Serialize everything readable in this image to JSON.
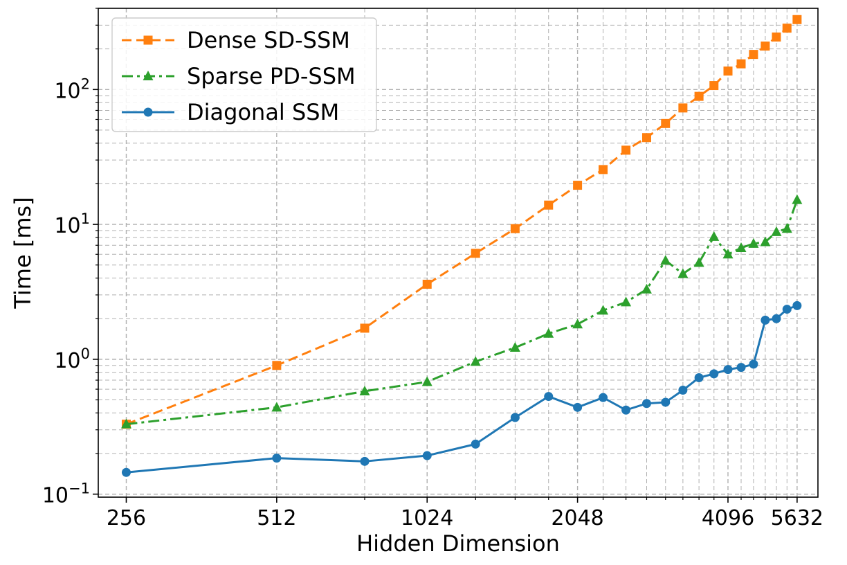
{
  "chart_data": {
    "type": "line",
    "xlabel": "Hidden Dimension",
    "ylabel": "Time [ms]",
    "x_scale": "log2",
    "y_scale": "log10",
    "xlim": [
      225,
      6200
    ],
    "ylim": [
      0.095,
      400
    ],
    "grid": true,
    "legend_position": "top-left",
    "x_ticks": [
      256,
      512,
      1024,
      2048,
      4096,
      5632
    ],
    "x_tick_labels": [
      "256",
      "512",
      "1024",
      "2048",
      "4096",
      "5632"
    ],
    "y_ticks": [
      {
        "value": 0.1,
        "base": "10",
        "exp": "−1"
      },
      {
        "value": 1,
        "base": "10",
        "exp": "0"
      },
      {
        "value": 10,
        "base": "10",
        "exp": "1"
      },
      {
        "value": 100,
        "base": "10",
        "exp": "2"
      }
    ],
    "series": [
      {
        "name": "Dense SD-SSM",
        "color": "#ff7f0e",
        "marker": "square",
        "linestyle": "dashed",
        "x": [
          256,
          512,
          768,
          1024,
          1280,
          1536,
          1792,
          2048,
          2304,
          2560,
          2816,
          3072,
          3328,
          3584,
          3840,
          4096,
          4352,
          4608,
          4864,
          5120,
          5376,
          5632
        ],
        "y": [
          0.33,
          0.9,
          1.7,
          3.6,
          6.1,
          9.3,
          13.9,
          19.5,
          25.5,
          35.5,
          44,
          56,
          73,
          89,
          107,
          137,
          155,
          182,
          210,
          245,
          285,
          330
        ]
      },
      {
        "name": "Sparse PD-SSM",
        "color": "#2ca02c",
        "marker": "triangle",
        "linestyle": "dashdot",
        "x": [
          256,
          512,
          768,
          1024,
          1280,
          1536,
          1792,
          2048,
          2304,
          2560,
          2816,
          3072,
          3328,
          3584,
          3840,
          4096,
          4352,
          4608,
          4864,
          5120,
          5376,
          5632
        ],
        "y": [
          0.33,
          0.44,
          0.58,
          0.68,
          0.96,
          1.22,
          1.55,
          1.82,
          2.3,
          2.65,
          3.3,
          5.4,
          4.3,
          5.2,
          8.1,
          6.0,
          6.7,
          7.2,
          7.4,
          8.8,
          9.3,
          15.2
        ]
      },
      {
        "name": "Diagonal SSM",
        "color": "#1f77b4",
        "marker": "circle",
        "linestyle": "solid",
        "x": [
          256,
          512,
          768,
          1024,
          1280,
          1536,
          1792,
          2048,
          2304,
          2560,
          2816,
          3072,
          3328,
          3584,
          3840,
          4096,
          4352,
          4608,
          4864,
          5120,
          5376,
          5632
        ],
        "y": [
          0.145,
          0.185,
          0.175,
          0.193,
          0.235,
          0.37,
          0.53,
          0.44,
          0.52,
          0.42,
          0.47,
          0.48,
          0.59,
          0.73,
          0.78,
          0.84,
          0.87,
          0.92,
          1.95,
          2.0,
          2.35,
          2.5
        ]
      }
    ]
  }
}
